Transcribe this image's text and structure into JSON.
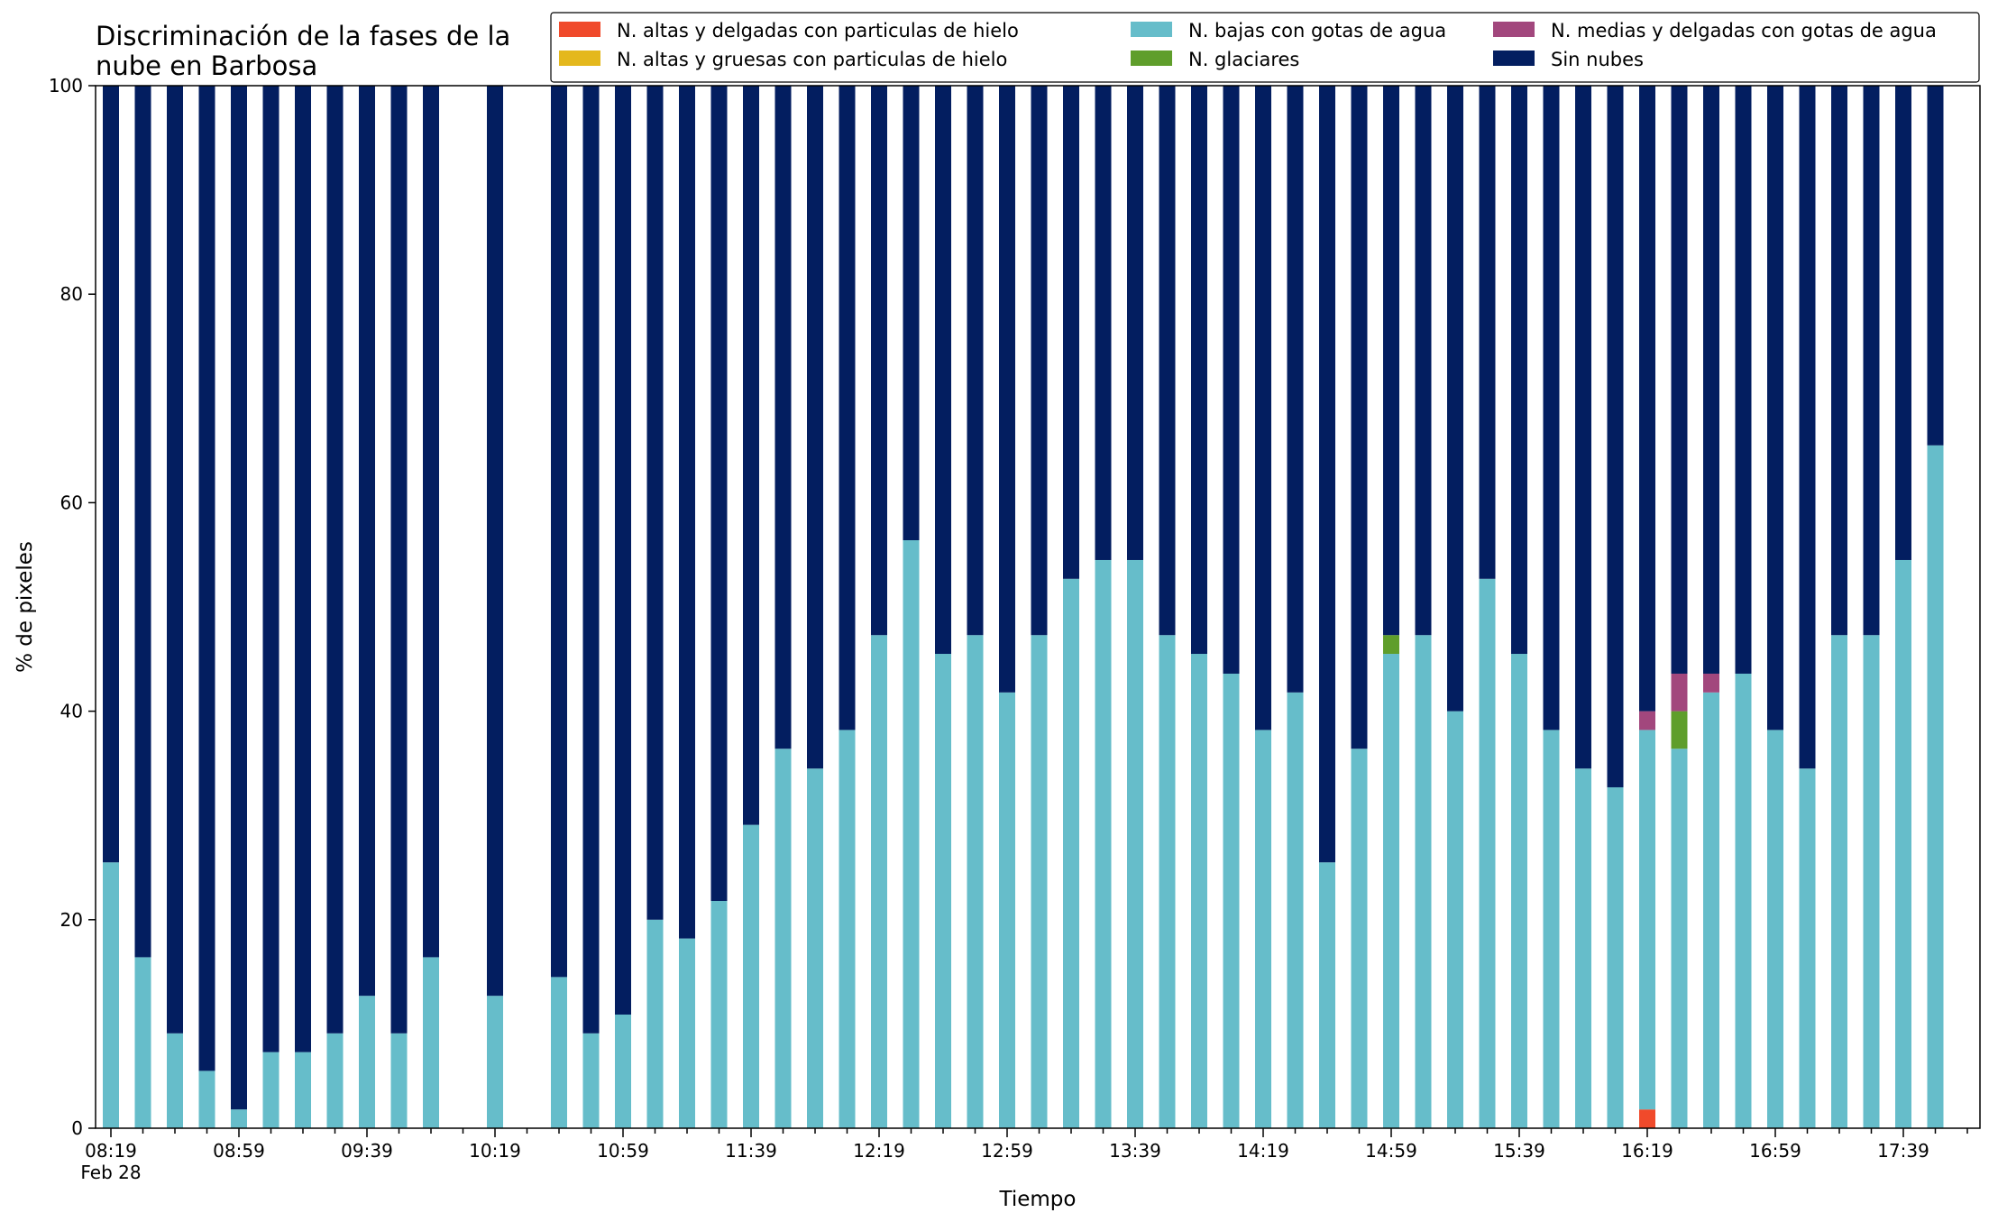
{
  "chart_data": {
    "type": "bar",
    "stacked": true,
    "title_lines": [
      "Discriminación de la fases de la",
      "nube en Barbosa"
    ],
    "xlabel": "Tiempo",
    "ylabel": "% de pixeles",
    "ylim": [
      0,
      100
    ],
    "yticks": [
      0,
      20,
      40,
      60,
      80,
      100
    ],
    "xtick_labels": [
      "08:19",
      "08:59",
      "09:39",
      "10:19",
      "10:59",
      "11:39",
      "12:19",
      "12:59",
      "13:39",
      "14:19",
      "14:59",
      "15:39",
      "16:19",
      "16:59",
      "17:39"
    ],
    "xtick_sublabel": "Feb 28",
    "interval_minutes": 10,
    "start_time": "08:19",
    "bar_times": [
      "08:19",
      "08:29",
      "08:39",
      "08:49",
      "08:59",
      "09:09",
      "09:19",
      "09:29",
      "09:39",
      "09:49",
      "09:59",
      "10:19",
      "10:39",
      "10:49",
      "10:59",
      "11:09",
      "11:19",
      "11:29",
      "11:39",
      "11:49",
      "11:59",
      "12:09",
      "12:19",
      "12:29",
      "12:39",
      "12:49",
      "12:59",
      "13:09",
      "13:19",
      "13:29",
      "13:39",
      "13:49",
      "13:59",
      "14:09",
      "14:19",
      "14:29",
      "14:39",
      "14:49",
      "14:59",
      "15:09",
      "15:19",
      "15:29",
      "15:39",
      "15:49",
      "15:59",
      "16:09",
      "16:19",
      "16:29",
      "16:39",
      "16:49",
      "16:59",
      "17:09",
      "17:19",
      "17:29",
      "17:39",
      "17:49"
    ],
    "grid": false,
    "legend_position": "top-right",
    "legend_columns": 3,
    "series": [
      {
        "name": "N. altas y delgadas con particulas de hielo",
        "color": "#f04a2b",
        "values": [
          0,
          0,
          0,
          0,
          0,
          0,
          0,
          0,
          0,
          0,
          0,
          0,
          0,
          0,
          0,
          0,
          0,
          0,
          0,
          0,
          0,
          0,
          0,
          0,
          0,
          0,
          0,
          0,
          0,
          0,
          0,
          0,
          0,
          0,
          0,
          0,
          0,
          0,
          0,
          0,
          0,
          0,
          0,
          0,
          0,
          0,
          1.8,
          0,
          0,
          0,
          0,
          0,
          0,
          0,
          0,
          0
        ]
      },
      {
        "name": "N. altas y gruesas con particulas de hielo",
        "color": "#e4b81d",
        "values": [
          0,
          0,
          0,
          0,
          0,
          0,
          0,
          0,
          0,
          0,
          0,
          0,
          0,
          0,
          0,
          0,
          0,
          0,
          0,
          0,
          0,
          0,
          0,
          0,
          0,
          0,
          0,
          0,
          0,
          0,
          0,
          0,
          0,
          0,
          0,
          0,
          0,
          0,
          0,
          0,
          0,
          0,
          0,
          0,
          0,
          0,
          0,
          0,
          0,
          0,
          0,
          0,
          0,
          0,
          0,
          0
        ]
      },
      {
        "name": "N. bajas con gotas de agua",
        "color": "#66bdca",
        "values": [
          25.5,
          16.4,
          9.1,
          5.5,
          1.8,
          7.3,
          7.3,
          9.1,
          12.7,
          9.1,
          16.4,
          12.7,
          14.5,
          9.1,
          10.9,
          20.0,
          18.2,
          21.8,
          29.1,
          36.4,
          34.5,
          38.2,
          47.3,
          56.4,
          45.5,
          47.3,
          41.8,
          47.3,
          52.7,
          54.5,
          54.5,
          47.3,
          45.5,
          43.6,
          38.2,
          41.8,
          25.5,
          36.4,
          45.5,
          47.3,
          40.0,
          52.7,
          45.5,
          38.2,
          34.5,
          32.7,
          36.4,
          36.4,
          41.8,
          43.6,
          38.2,
          34.5,
          47.3,
          47.3,
          54.5,
          65.5
        ]
      },
      {
        "name": "N. glaciares",
        "color": "#5f9e2b",
        "values": [
          0,
          0,
          0,
          0,
          0,
          0,
          0,
          0,
          0,
          0,
          0,
          0,
          0,
          0,
          0,
          0,
          0,
          0,
          0,
          0,
          0,
          0,
          0,
          0,
          0,
          0,
          0,
          0,
          0,
          0,
          0,
          0,
          0,
          0,
          0,
          0,
          0,
          0,
          1.8,
          0,
          0,
          0,
          0,
          0,
          0,
          0,
          0,
          3.6,
          0,
          0,
          0,
          0,
          0,
          0,
          0,
          0
        ]
      },
      {
        "name": "N. medias y delgadas con gotas de agua",
        "color": "#a2477d",
        "values": [
          0,
          0,
          0,
          0,
          0,
          0,
          0,
          0,
          0,
          0,
          0,
          0,
          0,
          0,
          0,
          0,
          0,
          0,
          0,
          0,
          0,
          0,
          0,
          0,
          0,
          0,
          0,
          0,
          0,
          0,
          0,
          0,
          0,
          0,
          0,
          0,
          0,
          0,
          0,
          0,
          0,
          0,
          0,
          0,
          0,
          0,
          1.8,
          3.6,
          1.8,
          0,
          0,
          0,
          0,
          0,
          0,
          0
        ]
      },
      {
        "name": "Sin nubes",
        "color": "#031e60",
        "values": [
          74.5,
          83.6,
          90.9,
          94.5,
          98.2,
          92.7,
          92.7,
          90.9,
          87.3,
          90.9,
          83.6,
          87.3,
          85.5,
          90.9,
          89.1,
          80.0,
          81.8,
          78.2,
          70.9,
          63.6,
          65.5,
          61.8,
          52.7,
          43.6,
          54.5,
          52.7,
          58.2,
          52.7,
          47.3,
          45.5,
          45.5,
          52.7,
          54.5,
          56.4,
          61.8,
          58.2,
          74.5,
          63.6,
          52.7,
          52.7,
          60.0,
          47.3,
          54.5,
          61.8,
          65.5,
          67.3,
          60.0,
          56.4,
          56.4,
          56.4,
          61.8,
          65.5,
          52.7,
          52.7,
          45.5,
          34.5
        ]
      }
    ]
  }
}
